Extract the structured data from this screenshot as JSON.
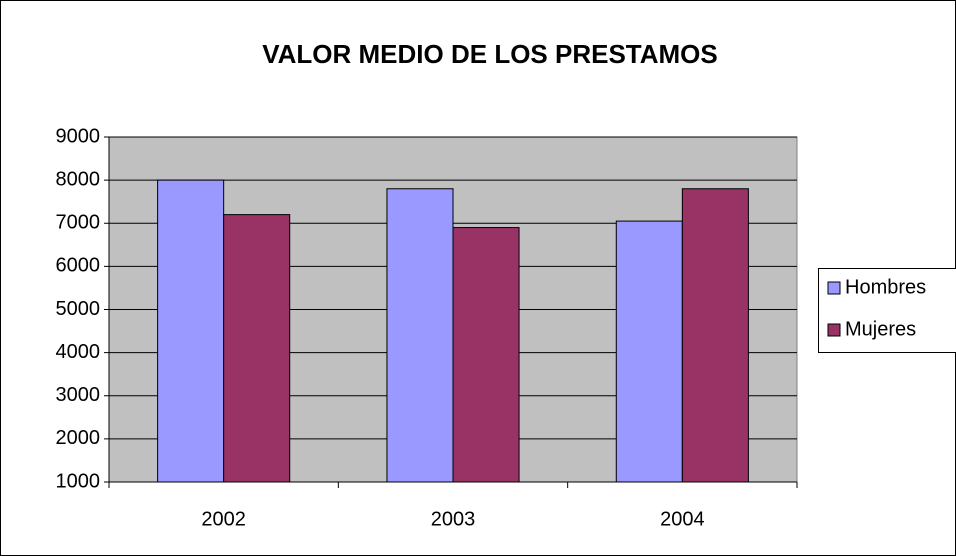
{
  "chart_data": {
    "type": "bar",
    "title": "VALOR MEDIO DE LOS PRESTAMOS",
    "categories": [
      "2002",
      "2003",
      "2004"
    ],
    "series": [
      {
        "name": "Hombres",
        "color": "#9999ff",
        "values": [
          8000,
          7800,
          7050
        ]
      },
      {
        "name": "Mujeres",
        "color": "#993366",
        "values": [
          7200,
          6900,
          7800
        ]
      }
    ],
    "ylim": [
      1000,
      9000
    ],
    "yticks": [
      1000,
      2000,
      3000,
      4000,
      5000,
      6000,
      7000,
      8000,
      9000
    ],
    "grid": true,
    "legend": "right"
  }
}
